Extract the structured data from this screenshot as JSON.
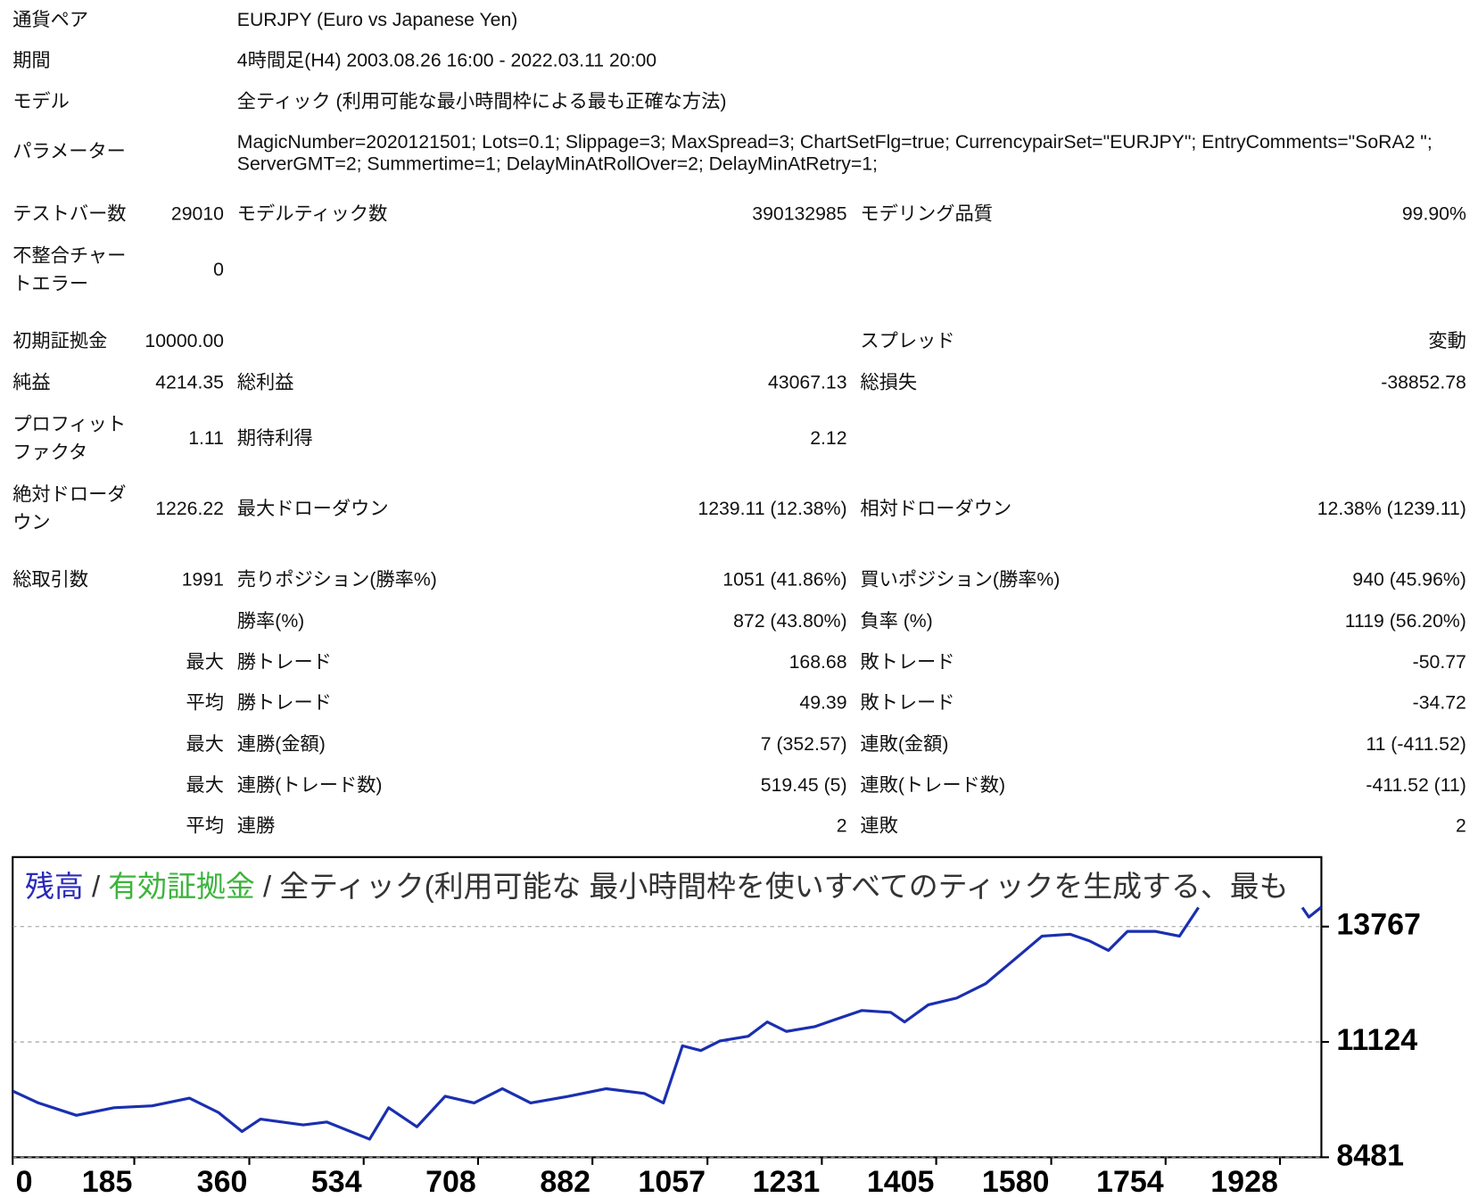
{
  "header": {
    "rows": [
      {
        "label": "通貨ペア",
        "value": [
          "EURJPY (Euro vs Japanese Yen)"
        ]
      },
      {
        "label": "期間",
        "value": [
          "4時間足(H4) 2003.08.26 16:00 - 2022.03.11 20:00"
        ]
      },
      {
        "label": "モデル",
        "value": [
          "全ティック (利用可能な最小時間枠による最も正確な方法)"
        ]
      },
      {
        "label": "パラメーター",
        "value": [
          "MagicNumber=2020121501; Lots=0.1; Slippage=3; MaxSpread=3; ChartSetFlg=true; CurrencypairSet=\"EURJPY\"; EntryComments=\"SoRA2 \";",
          "ServerGMT=2; Summertime=1; DelayMinAtRollOver=2; DelayMinAtRetry=1;"
        ]
      }
    ]
  },
  "stats": {
    "rows": [
      {
        "cells": [
          "テストバー数",
          "29010",
          "モデルティック数",
          "390132985",
          "モデリング品質",
          "99.90%"
        ]
      },
      {
        "cells": [
          [
            "不整合チャー",
            "トエラー"
          ],
          "0"
        ]
      },
      {
        "cells": [
          "初期証拠金",
          "10000.00",
          null,
          null,
          "スプレッド",
          "変動"
        ]
      },
      {
        "cells": [
          "純益",
          "4214.35",
          "総利益",
          "43067.13",
          "総損失",
          "-38852.78"
        ]
      },
      {
        "cells": [
          [
            "プロフィット",
            "ファクタ"
          ],
          "1.11",
          "期待利得",
          "2.12"
        ]
      },
      {
        "cells": [
          [
            "絶対ドローダ",
            "ウン"
          ],
          "1226.22",
          "最大ドローダウン",
          "1239.11 (12.38%)",
          "相対ドローダウン",
          "12.38% (1239.11)"
        ]
      },
      {
        "cells": [
          "総取引数",
          "1991",
          "売りポジション(勝率%)",
          "1051 (41.86%)",
          "買いポジション(勝率%)",
          "940 (45.96%)"
        ]
      },
      {
        "cells": [
          null,
          null,
          "勝率(%)",
          "872 (43.80%)",
          "負率 (%)",
          "1119 (56.20%)"
        ]
      },
      {
        "cells": [
          null,
          "最大",
          "勝トレード",
          "168.68",
          "敗トレード",
          "-50.77"
        ]
      },
      {
        "cells": [
          null,
          "平均",
          "勝トレード",
          "49.39",
          "敗トレード",
          "-34.72"
        ]
      },
      {
        "cells": [
          null,
          "最大",
          "連勝(金額)",
          "7 (352.57)",
          "連敗(金額)",
          "11 (-411.52)"
        ]
      },
      {
        "cells": [
          null,
          "最大",
          "連勝(トレード数)",
          "519.45 (5)",
          "連敗(トレード数)",
          "-411.52 (11)"
        ]
      },
      {
        "cells": [
          null,
          "平均",
          "連勝",
          "2",
          "連敗",
          "2"
        ]
      }
    ]
  },
  "chart_data": {
    "type": "line",
    "title_parts": [
      {
        "text": "残高",
        "color": "#2a2ab8"
      },
      {
        "text": " / ",
        "color": "#333333"
      },
      {
        "text": "有効証拠金",
        "color": "#3cb43c"
      },
      {
        "text": " / 全ティック(利用可能な 最小時間枠を使いすべてのティックを生成する、最も",
        "color": "#333333"
      }
    ],
    "x": [
      0,
      39,
      97,
      154,
      212,
      269,
      313,
      349,
      377,
      442,
      478,
      514,
      543,
      572,
      615,
      658,
      702,
      745,
      788,
      846,
      903,
      961,
      990,
      1019,
      1047,
      1076,
      1119,
      1148,
      1177,
      1220,
      1249,
      1292,
      1336,
      1357,
      1393,
      1436,
      1480,
      1523,
      1566,
      1609,
      1638,
      1667,
      1696,
      1739,
      1775,
      1804,
      1880,
      1962,
      1972,
      1991
    ],
    "series": [
      {
        "color": "#1a2fb0",
        "values": [
          10000,
          9726,
          9442,
          9617,
          9660,
          9835,
          9507,
          9071,
          9355,
          9224,
          9289,
          9071,
          8896,
          9617,
          9180,
          9879,
          9726,
          10053,
          9726,
          9879,
          10053,
          9944,
          9726,
          11036,
          10927,
          11145,
          11255,
          11582,
          11364,
          11473,
          11626,
          11844,
          11801,
          11582,
          11975,
          12128,
          12456,
          13002,
          13548,
          13592,
          13439,
          13220,
          13657,
          13657,
          13548,
          14203,
          null,
          14203,
          13985,
          14214
        ]
      }
    ],
    "xlim": [
      0,
      1991
    ],
    "ylim": [
      8481,
      15360
    ],
    "xticks": [
      0,
      185,
      360,
      534,
      708,
      882,
      1057,
      1231,
      1405,
      1580,
      1754,
      1928
    ],
    "yticks": [
      8481,
      11124,
      13767
    ],
    "grid": true
  }
}
